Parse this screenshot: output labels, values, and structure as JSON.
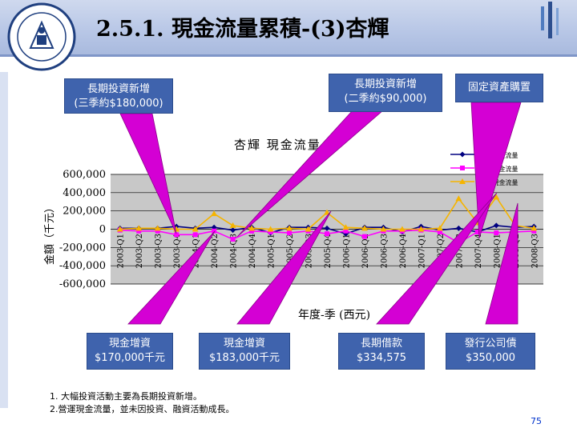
{
  "slide": {
    "title": "2.5.1. 現金流量累積-(3)杏輝",
    "page_number": "75",
    "notes": [
      "1. 大幅投資活動主要為長期投資新增。",
      "2.營運現金流量，並未因投資、融資活動成長。"
    ]
  },
  "callouts": [
    {
      "id": "lti3",
      "lines": [
        "長期投資新增",
        "(三季約$180,000)"
      ]
    },
    {
      "id": "lti2",
      "lines": [
        "長期投資新增",
        "(二季約$90,000)"
      ]
    },
    {
      "id": "fixed",
      "lines": [
        "固定資產購置"
      ]
    },
    {
      "id": "cash1",
      "lines": [
        "現金增資",
        "$170,000千元"
      ]
    },
    {
      "id": "cash2",
      "lines": [
        "現金增資",
        "$183,000千元"
      ]
    },
    {
      "id": "loan",
      "lines": [
        "長期借款",
        "$334,575"
      ]
    },
    {
      "id": "bond",
      "lines": [
        "發行公司債",
        "$350,000"
      ]
    }
  ],
  "colors": {
    "callout": "#3f63ad",
    "wedge": "#d400d4",
    "series_operating": "#000080",
    "series_investing": "#ff00ff",
    "series_financing": "#f5b400"
  },
  "chart_data": {
    "type": "line",
    "title": "杏輝 現金流量",
    "xlabel": "年度-季 (西元)",
    "ylabel": "金額（千元）",
    "ylim": [
      -600000,
      600000
    ],
    "yticks": [
      "600,000",
      "400,000",
      "200,000",
      "0",
      "-200,000",
      "-400,000",
      "-600,000"
    ],
    "grid": true,
    "legend_position": "top-right",
    "categories": [
      "2003-Q1",
      "2003-Q2",
      "2003-Q3",
      "2003-Q4",
      "2004-Q1",
      "2004-Q2",
      "2004-Q3",
      "2004-Q4",
      "2005-Q1",
      "2005-Q2",
      "2005-Q3",
      "2005-Q4",
      "2006-Q1",
      "2006-Q2",
      "2006-Q3",
      "2006-Q4",
      "2007-Q1",
      "2007-Q2",
      "2007-Q3",
      "2007-Q4",
      "2008-Q1",
      "2008-Q2",
      "2008-Q3"
    ],
    "series": [
      {
        "name": "現之 現金流量",
        "values": [
          10000,
          10000,
          10000,
          30000,
          10000,
          20000,
          -10000,
          20000,
          -40000,
          20000,
          20000,
          10000,
          -50000,
          20000,
          20000,
          -30000,
          30000,
          -10000,
          10000,
          -30000,
          40000,
          20000,
          30000
        ]
      },
      {
        "name": "資之 現金流量",
        "values": [
          -10000,
          -20000,
          -20000,
          -60000,
          -60000,
          -20000,
          -110000,
          -20000,
          -30000,
          -40000,
          -20000,
          -50000,
          -20000,
          -80000,
          -20000,
          -20000,
          -10000,
          -30000,
          -150000,
          -30000,
          -40000,
          -30000,
          -20000
        ]
      },
      {
        "name": "融之 現金流量",
        "values": [
          0,
          10000,
          10000,
          0,
          0,
          170000,
          40000,
          10000,
          0,
          10000,
          0,
          183000,
          20000,
          10000,
          0,
          0,
          0,
          10000,
          334575,
          70000,
          350000,
          40000,
          10000
        ]
      }
    ]
  }
}
